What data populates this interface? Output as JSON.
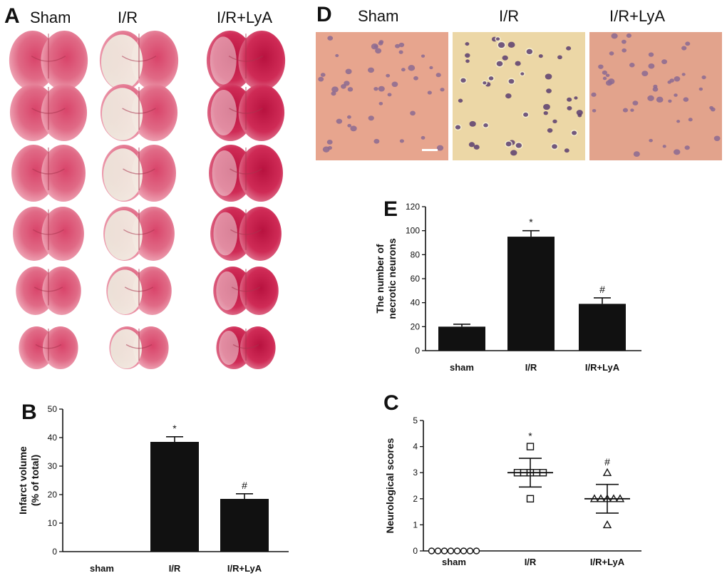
{
  "panel_A": {
    "letter": "A",
    "groups": [
      "Sham",
      "I/R",
      "I/R+LyA"
    ]
  },
  "panel_D": {
    "letter": "D",
    "groups": [
      "Sham",
      "I/R",
      "I/R+LyA"
    ]
  },
  "chart_data": [
    {
      "panel": "B",
      "type": "bar",
      "ylabel": [
        "Infarct volume",
        "(% of total)"
      ],
      "categories": [
        "sham",
        "I/R",
        "I/R+LyA"
      ],
      "values": [
        0,
        38.5,
        18.5
      ],
      "errors": [
        0,
        1.8,
        1.8
      ],
      "annotations": [
        "",
        "*",
        "#"
      ],
      "ylim": [
        0,
        50
      ],
      "yticks": [
        0,
        10,
        20,
        30,
        40,
        50
      ],
      "grid": false
    },
    {
      "panel": "E",
      "type": "bar",
      "ylabel": [
        "The number of",
        "necrotic neurons"
      ],
      "categories": [
        "sham",
        "I/R",
        "I/R+LyA"
      ],
      "values": [
        20,
        95,
        39
      ],
      "errors": [
        2,
        5,
        5
      ],
      "annotations": [
        "",
        "*",
        "#"
      ],
      "ylim": [
        0,
        120
      ],
      "yticks": [
        0,
        20,
        40,
        60,
        80,
        100,
        120
      ],
      "grid": false
    },
    {
      "panel": "C",
      "type": "scatter",
      "ylabel": [
        "Neurological scores"
      ],
      "categories": [
        "sham",
        "I/R",
        "I/R+LyA"
      ],
      "points": [
        [
          0,
          0,
          0,
          0,
          0,
          0,
          0,
          0
        ],
        [
          4,
          3,
          3,
          3,
          3,
          3,
          2
        ],
        [
          3,
          2,
          2,
          2,
          2,
          2,
          1
        ]
      ],
      "markers": [
        "circle",
        "square",
        "triangle"
      ],
      "means": [
        0,
        3,
        2
      ],
      "sd": [
        0,
        0.55,
        0.55
      ],
      "annotations": [
        "",
        "*",
        "#"
      ],
      "ylim": [
        0,
        5
      ],
      "yticks": [
        0,
        1,
        2,
        3,
        4,
        5
      ],
      "grid": false
    }
  ]
}
